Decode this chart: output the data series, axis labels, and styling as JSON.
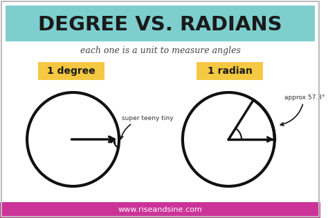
{
  "title": "DEGREE VS. RADIANS",
  "subtitle": "each one is a unit to measure angles",
  "label1": "1 degree",
  "label2": "1 radian",
  "annotation1": "super teeny tiny",
  "annotation2": "approx 57.3°",
  "website": "www.riseandsine.com",
  "bg_color": "#ffffff",
  "title_bg_color": "#7ecece",
  "label_bg_color": "#f5c842",
  "footer_bg_color": "#cc3399",
  "title_color": "#1a1a1a",
  "line_color": "#111111",
  "footer_text_color": "#ffffff"
}
